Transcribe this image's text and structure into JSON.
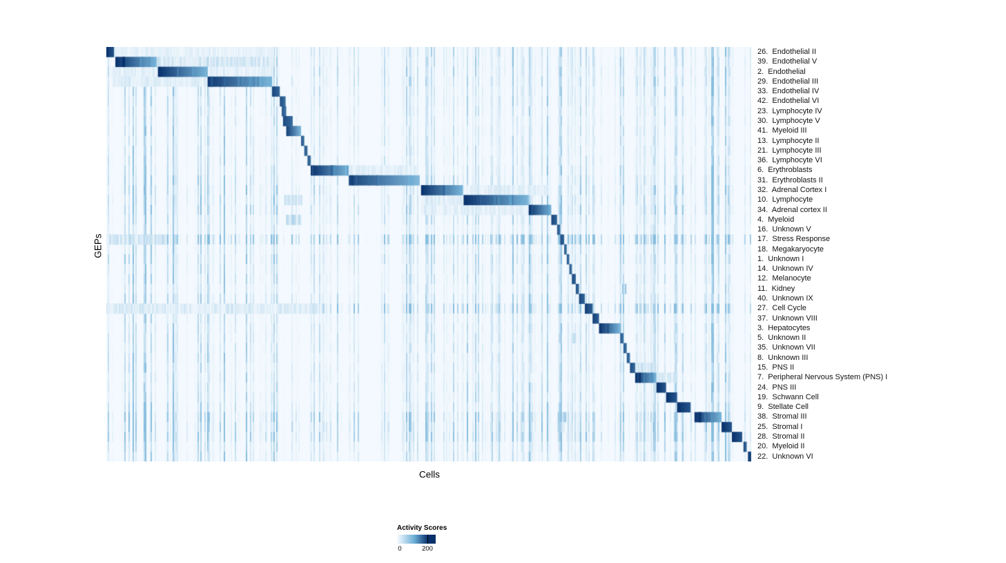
{
  "chart_data": {
    "type": "heatmap",
    "title": "",
    "xlabel": "Cells",
    "ylabel": "GEPs",
    "legend": {
      "title": "Activity Scores",
      "ticks": [
        "0",
        "200"
      ],
      "min": 0,
      "max": 250
    },
    "colormap": {
      "name": "Blues",
      "low": "#f7fbff",
      "mid": "#6baed6",
      "high": "#08306b"
    },
    "n_rows": 42,
    "x_axis": {
      "label": "Cells",
      "tick_labels": []
    },
    "noise_regions": [
      [
        0.01,
        0.27,
        1.6
      ],
      [
        0.33,
        0.4,
        0.8
      ],
      [
        0.47,
        0.57,
        1.2
      ],
      [
        0.6,
        0.75,
        1.4
      ],
      [
        0.86,
        1.0,
        1.8
      ]
    ],
    "rows": [
      {
        "label": "26.  Endothelial II",
        "block": [
          0.0,
          0.012
        ],
        "i": 1.0,
        "noise": 0.3,
        "sec": [
          [
            0.012,
            0.26,
            0.1
          ]
        ]
      },
      {
        "label": "39.  Endothelial V",
        "block": [
          0.014,
          0.078
        ],
        "i": 1.0,
        "noise": 0.3,
        "sec": [
          [
            0.078,
            0.255,
            0.2
          ]
        ]
      },
      {
        "label": "2.  Endothelial",
        "block": [
          0.08,
          0.157
        ],
        "i": 1.0,
        "noise": 0.3,
        "sec": [
          [
            0.005,
            0.078,
            0.14
          ],
          [
            0.157,
            0.255,
            0.12
          ]
        ]
      },
      {
        "label": "29.  Endothelial III",
        "block": [
          0.157,
          0.257
        ],
        "i": 0.97,
        "noise": 0.3,
        "sec": [
          [
            0.01,
            0.157,
            0.14
          ]
        ]
      },
      {
        "label": "33.  Endothelial IV",
        "block": [
          0.257,
          0.269
        ],
        "i": 0.92,
        "noise": 0.25
      },
      {
        "label": "42.  Endothelial VI",
        "block": [
          0.269,
          0.278
        ],
        "i": 0.88,
        "noise": 0.25
      },
      {
        "label": "23.  Lymphocyte IV",
        "block": [
          0.272,
          0.279
        ],
        "i": 0.85,
        "noise": 0.22
      },
      {
        "label": "30.  Lymphocyte V",
        "block": [
          0.274,
          0.289
        ],
        "i": 0.9,
        "noise": 0.22
      },
      {
        "label": "41.  Myeloid III",
        "block": [
          0.279,
          0.302
        ],
        "i": 0.95,
        "noise": 0.22
      },
      {
        "label": "13.  Lymphocyte II",
        "block": [
          0.302,
          0.307
        ],
        "i": 0.85,
        "noise": 0.22
      },
      {
        "label": "21.  Lymphocyte III",
        "block": [
          0.307,
          0.312
        ],
        "i": 0.85,
        "noise": 0.22
      },
      {
        "label": "36.  Lymphocyte VI",
        "block": [
          0.312,
          0.317
        ],
        "i": 0.85,
        "noise": 0.22
      },
      {
        "label": "6.  Erythroblasts",
        "block": [
          0.317,
          0.376
        ],
        "i": 1.0,
        "noise": 0.25,
        "sec": [
          [
            0.376,
            0.48,
            0.12
          ]
        ]
      },
      {
        "label": "31.  Erythroblasts II",
        "block": [
          0.376,
          0.486
        ],
        "i": 0.92,
        "noise": 0.3
      },
      {
        "label": "32.  Adrenal Cortex I",
        "block": [
          0.488,
          0.553
        ],
        "i": 1.0,
        "noise": 0.35,
        "sec": [
          [
            0.553,
            0.69,
            0.13
          ]
        ]
      },
      {
        "label": "10.  Lymphocyte",
        "block": [
          0.554,
          0.655
        ],
        "i": 1.0,
        "noise": 0.35,
        "sec": [
          [
            0.276,
            0.302,
            0.25
          ],
          [
            0.488,
            0.553,
            0.13
          ]
        ]
      },
      {
        "label": "34.  Adrenal cortex II",
        "block": [
          0.655,
          0.69
        ],
        "i": 1.0,
        "noise": 0.35,
        "sec": [
          [
            0.488,
            0.655,
            0.12
          ]
        ]
      },
      {
        "label": "4.  Myeloid",
        "block": [
          0.69,
          0.699
        ],
        "i": 0.92,
        "noise": 0.25,
        "sec": [
          [
            0.279,
            0.302,
            0.3
          ]
        ]
      },
      {
        "label": "16.  Unknown V",
        "block": [
          0.699,
          0.704
        ],
        "i": 0.85,
        "noise": 0.22
      },
      {
        "label": "17.  Stress Response",
        "block": [
          0.704,
          0.71
        ],
        "i": 0.9,
        "noise": 0.85,
        "sec": [
          [
            0.0,
            0.09,
            0.22
          ]
        ]
      },
      {
        "label": "18.  Megakaryocyte",
        "block": [
          0.71,
          0.714
        ],
        "i": 0.85,
        "noise": 0.25
      },
      {
        "label": "1.  Unknown I",
        "block": [
          0.714,
          0.718
        ],
        "i": 0.85,
        "noise": 0.3
      },
      {
        "label": "14.  Unknown IV",
        "block": [
          0.718,
          0.722
        ],
        "i": 0.85,
        "noise": 0.25
      },
      {
        "label": "12.  Melanocyte",
        "block": [
          0.722,
          0.728
        ],
        "i": 0.92,
        "noise": 0.25
      },
      {
        "label": "11.  Kidney",
        "block": [
          0.728,
          0.733
        ],
        "i": 0.88,
        "noise": 0.22,
        "sec": [
          [
            0.8,
            0.806,
            0.55
          ]
        ]
      },
      {
        "label": "40.  Unknown IX",
        "block": [
          0.733,
          0.742
        ],
        "i": 0.92,
        "noise": 0.3
      },
      {
        "label": "27.  Cell Cycle",
        "block": [
          0.742,
          0.754
        ],
        "i": 0.95,
        "noise": 0.7,
        "sec": [
          [
            0.0,
            0.33,
            0.16
          ]
        ]
      },
      {
        "label": "37.  Unknown VIII",
        "block": [
          0.754,
          0.764
        ],
        "i": 0.95,
        "noise": 0.25
      },
      {
        "label": "3.  Hepatocytes",
        "block": [
          0.764,
          0.797
        ],
        "i": 1.0,
        "noise": 0.25
      },
      {
        "label": "5.  Unknown II",
        "block": [
          0.797,
          0.802
        ],
        "i": 0.85,
        "noise": 0.25,
        "sec": [
          [
            0.722,
            0.728,
            0.3
          ]
        ]
      },
      {
        "label": "35.  Unknown VII",
        "block": [
          0.802,
          0.807
        ],
        "i": 0.85,
        "noise": 0.25
      },
      {
        "label": "8.  Unknown III",
        "block": [
          0.807,
          0.812
        ],
        "i": 0.85,
        "noise": 0.25
      },
      {
        "label": "15.  PNS II",
        "block": [
          0.812,
          0.82
        ],
        "i": 0.9,
        "noise": 0.25,
        "sec": [
          [
            0.82,
            0.853,
            0.2
          ]
        ]
      },
      {
        "label": "7.  Peripheral Nervous System (PNS) I",
        "block": [
          0.82,
          0.853
        ],
        "i": 1.0,
        "noise": 0.25,
        "sec": [
          [
            0.853,
            0.885,
            0.18
          ]
        ]
      },
      {
        "label": "24.  PNS III",
        "block": [
          0.853,
          0.868
        ],
        "i": 1.0,
        "noise": 0.25
      },
      {
        "label": "19.  Schwann Cell",
        "block": [
          0.868,
          0.885
        ],
        "i": 1.0,
        "noise": 0.25
      },
      {
        "label": "9.  Stellate Cell",
        "block": [
          0.885,
          0.906
        ],
        "i": 1.0,
        "noise": 0.3
      },
      {
        "label": "38.  Stromal III",
        "block": [
          0.912,
          0.954
        ],
        "i": 1.0,
        "noise": 0.5,
        "sec": [
          [
            0.7,
            0.712,
            0.4
          ]
        ]
      },
      {
        "label": "25.  Stromal I",
        "block": [
          0.954,
          0.97
        ],
        "i": 1.0,
        "noise": 0.5,
        "sec": [
          [
            0.7,
            0.71,
            0.3
          ]
        ]
      },
      {
        "label": "28.  Stromal II",
        "block": [
          0.97,
          0.986
        ],
        "i": 1.0,
        "noise": 0.5
      },
      {
        "label": "20.  Myeloid II",
        "block": [
          0.988,
          0.993
        ],
        "i": 0.9,
        "noise": 0.3
      },
      {
        "label": "22.  Unknown VI",
        "block": [
          0.995,
          1.0
        ],
        "i": 1.0,
        "noise": 0.3
      }
    ]
  }
}
